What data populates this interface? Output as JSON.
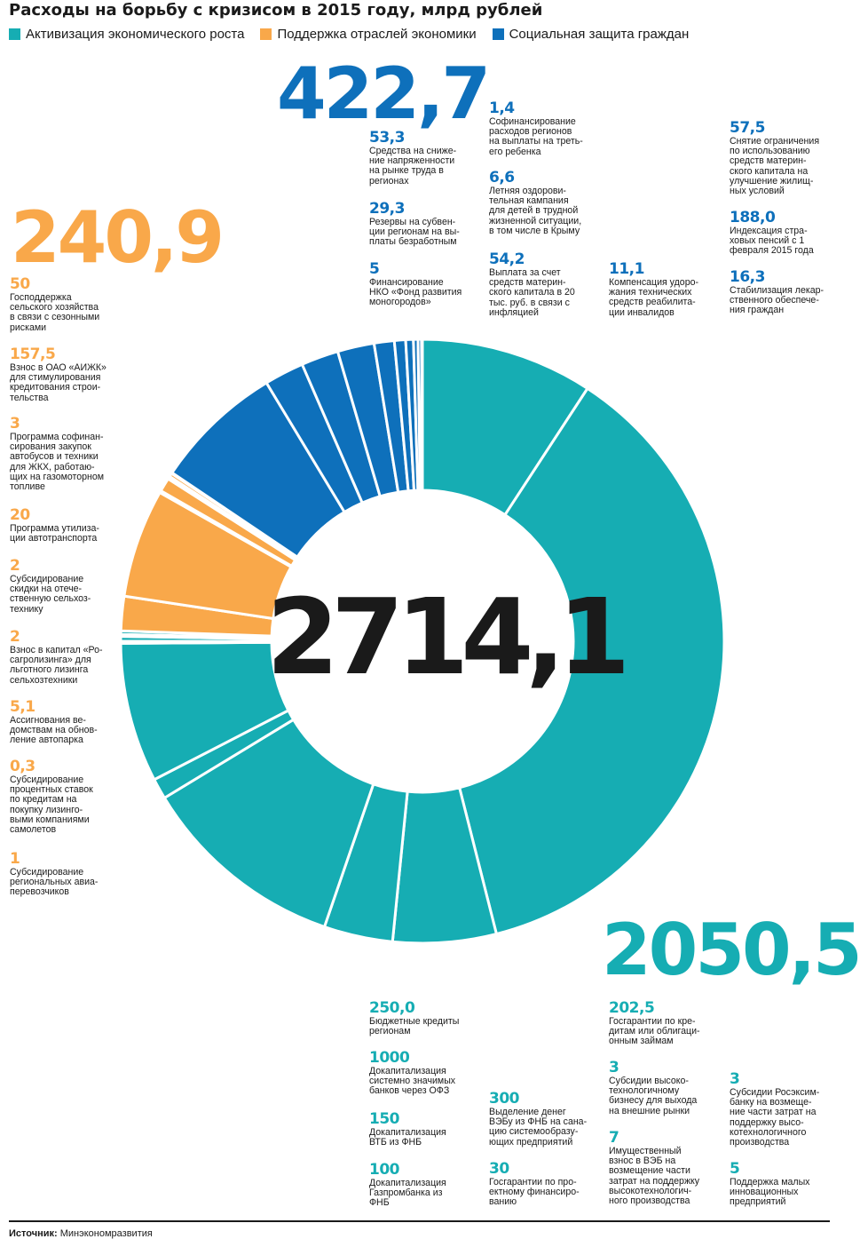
{
  "chart_data": {
    "type": "donut",
    "title": "Расходы на борьбу с кризисом в 2015 году, млрд рублей",
    "total": "2714,1",
    "legend": [
      {
        "label": "Активизация экономического роста",
        "color": "#16adb3"
      },
      {
        "label": "Поддержка отраслей экономики",
        "color": "#f9a84a"
      },
      {
        "label": "Социальная защита граждан",
        "color": "#0e70bb"
      }
    ],
    "groups": [
      {
        "name": "Активизация экономического роста",
        "total": "2050,5",
        "color": "#16adb3",
        "items": [
          {
            "value": "250,0",
            "label": "Бюджетные кредиты\nрегионам"
          },
          {
            "value": "1000",
            "label": "Докапитализация\nсистемно значимых\nбанков через ОФЗ"
          },
          {
            "value": "150",
            "label": "Докапитализация\nВТБ из ФНБ"
          },
          {
            "value": "100",
            "label": "Докапитализация\nГазпромбанка из\nФНБ"
          },
          {
            "value": "300",
            "label": "Выделение денег\nВЭБу из ФНБ на сана-\nцию системообразу-\nющих предприятий"
          },
          {
            "value": "30",
            "label": "Госгарантии по про-\nектному финансиро-\nванию"
          },
          {
            "value": "202,5",
            "label": "Госгарантии по кре-\nдитам или облигаци-\nонным займам"
          },
          {
            "value": "3",
            "label": "Субсидии высоко-\nтехнологичному\nбизнесу для выхода\nна внешние рынки"
          },
          {
            "value": "7",
            "label": "Имущественный\nвзнос в ВЭБ на\nвозмещение части\nзатрат на поддержку\nвысокотехнологич-\nного производства"
          },
          {
            "value": "3",
            "label": "Субсидии Росэксим-\nбанку на возмеще-\nние части затрат на\nподдержку высо-\nкотехнологичного\nпроизводства"
          },
          {
            "value": "5",
            "label": "Поддержка малых\nинновационных\nпредприятий"
          }
        ]
      },
      {
        "name": "Поддержка отраслей экономики",
        "total": "240,9",
        "color": "#f9a84a",
        "items": [
          {
            "value": "50",
            "label": "Господдержка\nсельского хозяйства\nв связи с сезонными\nрисками"
          },
          {
            "value": "157,5",
            "label": "Взнос в ОАО «АИЖК»\nдля стимулирования\nкредитования строи-\nтельства"
          },
          {
            "value": "3",
            "label": "Программа софинан-\nсирования закупок\nавтобусов и техники\nдля ЖКХ, работаю-\nщих на газомоторном\nтопливе"
          },
          {
            "value": "20",
            "label": "Программа утилиза-\nции автотранспорта"
          },
          {
            "value": "2",
            "label": "Субсидирование\nскидки на отече-\nственную сельхоз-\nтехнику"
          },
          {
            "value": "2",
            "label": "Взнос в капитал «Ро-\nсагролизинга» для\nльготного лизинга\nсельхозтехники"
          },
          {
            "value": "5,1",
            "label": "Ассигнования ве-\nдомствам на обнов-\nление автопарка"
          },
          {
            "value": "0,3",
            "label": "Субсидирование\nпроцентных ставок\nпо кредитам на\nпокупку лизинго-\nвыми компаниями\nсамолетов"
          },
          {
            "value": "1",
            "label": "Субсидирование\nрегиональных авиа-\nперевозчиков"
          }
        ]
      },
      {
        "name": "Социальная защита граждан",
        "total": "422,7",
        "color": "#0e70bb",
        "items": [
          {
            "value": "53,3",
            "label": "Средства на сниже-\nние напряженности\nна рынке труда в\nрегионах"
          },
          {
            "value": "29,3",
            "label": "Резервы на субвен-\nции регионам на вы-\nплаты безработным"
          },
          {
            "value": "5",
            "label": "Финансирование\nНКО «Фонд развития\nмоногородов»"
          },
          {
            "value": "1,4",
            "label": "Софинансирование\nрасходов регионов\nна выплаты на треть-\nего ребенка"
          },
          {
            "value": "6,6",
            "label": "Летняя оздорови-\nтельная кампания\nдля детей в трудной\nжизненной ситуации,\nв том числе в Крыму"
          },
          {
            "value": "54,2",
            "label": "Выплата за счет\nсредств материн-\nского капитала в 20\nтыс. руб. в связи с\nинфляцией"
          },
          {
            "value": "11,1",
            "label": "Компенсация удоро-\nжания технических\nсредств реабилита-\nции инвалидов"
          },
          {
            "value": "57,5",
            "label": "Снятие ограничения\nпо использованию\nсредств материн-\nского капитала на\nулучшение жилищ-\nных условий"
          },
          {
            "value": "188,0",
            "label": "Индексация стра-\nховых пенсий с 1\nфевраля 2015 года"
          },
          {
            "value": "16,3",
            "label": "Стабилизация лекар-\nственного обеспече-\nния граждан"
          }
        ]
      }
    ],
    "slices": [
      {
        "group": 0,
        "value": 250.0
      },
      {
        "group": 0,
        "value": 1000
      },
      {
        "group": 0,
        "value": 150
      },
      {
        "group": 0,
        "value": 100
      },
      {
        "group": 0,
        "value": 300
      },
      {
        "group": 0,
        "value": 30
      },
      {
        "group": 0,
        "value": 202.5
      },
      {
        "group": 0,
        "value": 3
      },
      {
        "group": 0,
        "value": 7
      },
      {
        "group": 0,
        "value": 3
      },
      {
        "group": 0,
        "value": 5
      },
      {
        "group": 1,
        "value": 50
      },
      {
        "group": 1,
        "value": 157.5
      },
      {
        "group": 1,
        "value": 3
      },
      {
        "group": 1,
        "value": 20
      },
      {
        "group": 1,
        "value": 2
      },
      {
        "group": 1,
        "value": 2
      },
      {
        "group": 1,
        "value": 5.1
      },
      {
        "group": 1,
        "value": 0.3
      },
      {
        "group": 1,
        "value": 1
      },
      {
        "group": 2,
        "value": 188.0
      },
      {
        "group": 2,
        "value": 57.5
      },
      {
        "group": 2,
        "value": 54.2
      },
      {
        "group": 2,
        "value": 53.3
      },
      {
        "group": 2,
        "value": 29.3
      },
      {
        "group": 2,
        "value": 16.3
      },
      {
        "group": 2,
        "value": 11.1
      },
      {
        "group": 2,
        "value": 6.6
      },
      {
        "group": 2,
        "value": 5
      },
      {
        "group": 2,
        "value": 1.4
      }
    ]
  },
  "source": {
    "label": "Источник:",
    "value": "Минэкономразвития"
  }
}
